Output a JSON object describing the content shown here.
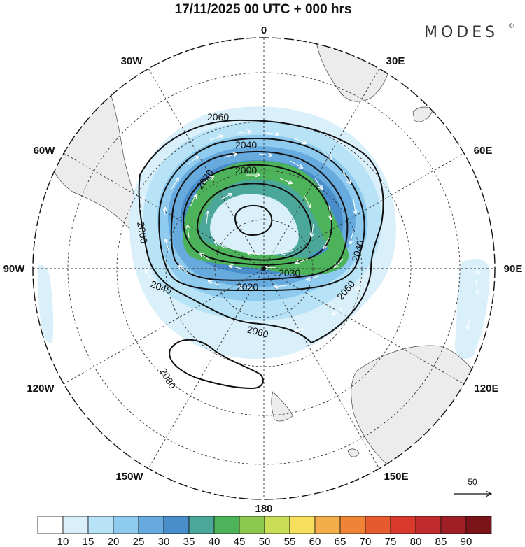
{
  "title": "17/11/2025  00 UTC  + 000 hrs",
  "brand": {
    "name": "MODES",
    "mark": "©"
  },
  "longitude_labels": {
    "lon_0": "0",
    "lon_30e": "30E",
    "lon_60e": "60E",
    "lon_90e": "90E",
    "lon_120e": "120E",
    "lon_150e": "150E",
    "lon_180": "180",
    "lon_150w": "150W",
    "lon_120w": "120W",
    "lon_90w": "90W",
    "lon_60w": "60W",
    "lon_30w": "30W"
  },
  "contours": {
    "c2000": "2000",
    "c2020a": "2020",
    "c2020b": "2020",
    "c2030": "2030",
    "c2040a": "2040",
    "c2040b": "2040",
    "c2040c": "2040",
    "c2060a": "2060",
    "c2060b": "2060",
    "c2060c": "2060",
    "c2060d": "2060",
    "c2080": "2080"
  },
  "reference_vector": {
    "label": "50"
  },
  "colorbar": {
    "ticks": [
      "10",
      "15",
      "20",
      "25",
      "30",
      "35",
      "40",
      "45",
      "50",
      "55",
      "60",
      "65",
      "70",
      "75",
      "80",
      "85",
      "90"
    ],
    "colors": [
      "#ffffff",
      "#d9f0fb",
      "#b8e2f6",
      "#8ecbef",
      "#67aade",
      "#4a8dcb",
      "#4ba79a",
      "#4cb35a",
      "#8ec94f",
      "#c9dd56",
      "#f5df5c",
      "#f4ad4b",
      "#ef8436",
      "#e55a2f",
      "#d9392c",
      "#c12b2c",
      "#a01f26",
      "#7a1418"
    ]
  }
}
